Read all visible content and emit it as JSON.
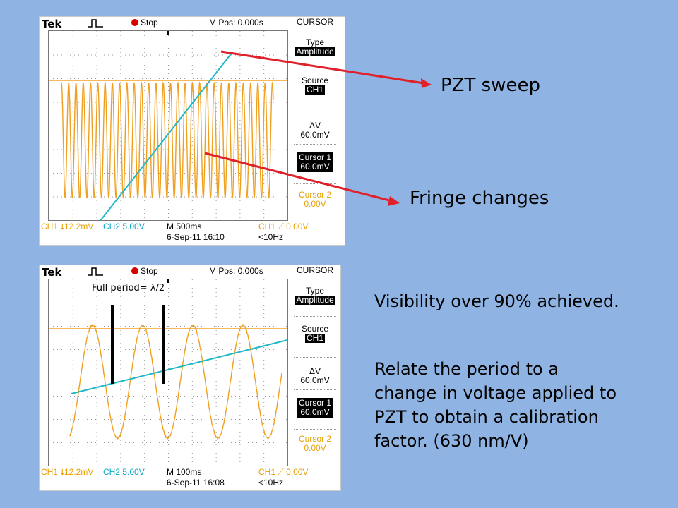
{
  "scope_top": {
    "brand": "Tek",
    "state": "Stop",
    "mpos": "M Pos: 0.000s",
    "menu_title": "CURSOR",
    "type_label": "Type",
    "type_value": "Amplitude",
    "source_label": "Source",
    "source_value": "CH1",
    "delta_v": "ΔV 60.0mV",
    "cursor1_label": "Cursor 1",
    "cursor1_value": "60.0mV",
    "cursor2_label": "Cursor 2",
    "cursor2_value": "0.00V",
    "ch1": "CH1 ⭣12.2mV",
    "ch2": "CH2  5.00V",
    "timebase": "M 500ms",
    "trigger": "CH1 ⟋ 0.00V",
    "date": "6-Sep-11 16:10",
    "freq": "<10Hz"
  },
  "scope_bottom": {
    "brand": "Tek",
    "state": "Stop",
    "mpos": "M Pos: 0.000s",
    "menu_title": "CURSOR",
    "type_label": "Type",
    "type_value": "Amplitude",
    "source_label": "Source",
    "source_value": "CH1",
    "delta_v": "ΔV 60.0mV",
    "cursor1_label": "Cursor 1",
    "cursor1_value": "60.0mV",
    "cursor2_label": "Cursor 2",
    "cursor2_value": "0.00V",
    "ch1": "CH1 ⭣12.2mV",
    "ch2": "CH2  5.00V",
    "timebase": "M 100ms",
    "trigger": "CH1 ⟋ 0.00V",
    "date": "6-Sep-11 16:08",
    "freq": "<10Hz"
  },
  "annotations": {
    "pzt_sweep": "PZT sweep",
    "fringe_changes": "Fringe changes",
    "full_period": "Full period= λ/2"
  },
  "text": {
    "visibility": "Visibility over 90% achieved.",
    "relate_line1": "Relate the period to a",
    "relate_line2": "change in voltage applied to",
    "relate_line3": "PZT to obtain a calibration",
    "relate_line4": "factor. (630 nm/V)"
  },
  "colors": {
    "background": "#8fb4e3",
    "ch1_trace": "#f0a020",
    "ch2_trace": "#1fb8c8",
    "arrow": "#e0202a"
  }
}
